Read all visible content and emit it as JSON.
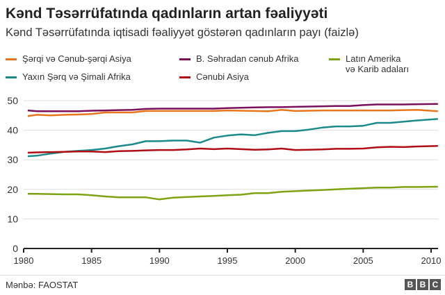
{
  "title": "Kənd Təsərrüfatında qadınların artan fəaliyyəti",
  "subtitle": "Kənd Təsərrüfatında iqtisadi fəaliyyət göstərən qadınların payı (faizlə)",
  "source": "Mənbə: FAOSTAT",
  "logo": [
    "B",
    "B",
    "C"
  ],
  "chart_data": {
    "type": "line",
    "title": "Kənd Təsərrüfatında qadınların artan fəaliyyəti",
    "xlabel": "",
    "ylabel": "",
    "xlim": [
      1980,
      2010.5
    ],
    "ylim": [
      0,
      50
    ],
    "x_ticks": [
      "1980",
      "1985",
      "1990",
      "1995",
      "2000",
      "2005",
      "2010"
    ],
    "y_ticks": [
      "0",
      "10",
      "20",
      "30",
      "40",
      "50"
    ],
    "grid": true,
    "x": [
      1980.3,
      1981,
      1982,
      1983,
      1984,
      1985,
      1986,
      1987,
      1988,
      1989,
      1990,
      1991,
      1992,
      1993,
      1994,
      1995,
      1996,
      1997,
      1998,
      1999,
      2000,
      2001,
      2002,
      2003,
      2004,
      2005,
      2006,
      2007,
      2008,
      2009,
      2010.5
    ],
    "series": [
      {
        "name": "Şərqi və Cənub-şərqi Asiya",
        "color": "#e8761c",
        "values": [
          44.8,
          45.2,
          45,
          45.2,
          45.3,
          45.5,
          46,
          46,
          46,
          46.5,
          46.5,
          46.5,
          46.5,
          46.5,
          46.5,
          46.7,
          46.6,
          46.5,
          46.4,
          46.9,
          46.5,
          46.6,
          46.7,
          46.7,
          46.7,
          46.7,
          46.7,
          46.7,
          46.8,
          46.9,
          46.4
        ]
      },
      {
        "name": "B. Səhradan cənub Afrika",
        "color": "#7a0f5c",
        "values": [
          46.7,
          46.4,
          46.4,
          46.4,
          46.4,
          46.6,
          46.7,
          46.8,
          46.9,
          47.2,
          47.3,
          47.3,
          47.3,
          47.3,
          47.3,
          47.5,
          47.6,
          47.7,
          47.8,
          47.8,
          47.9,
          48,
          48.1,
          48.2,
          48.2,
          48.5,
          48.7,
          48.7,
          48.7,
          48.8,
          48.9
        ]
      },
      {
        "name": "Latın Amerika və Karib adaları",
        "color": "#7ea312",
        "values": [
          18.5,
          18.5,
          18.4,
          18.3,
          18.3,
          18.0,
          17.6,
          17.3,
          17.3,
          17.3,
          16.6,
          17.2,
          17.4,
          17.6,
          17.8,
          18.0,
          18.2,
          18.7,
          18.7,
          19.2,
          19.4,
          19.6,
          19.8,
          20.0,
          20.2,
          20.4,
          20.6,
          20.6,
          20.8,
          20.8,
          20.9
        ]
      },
      {
        "name": "Yaxın Şərq və Şimali Afrika",
        "color": "#1b8a8a",
        "values": [
          31.2,
          31.4,
          32.1,
          32.7,
          33.0,
          33.3,
          33.8,
          34.6,
          35.2,
          36.3,
          36.3,
          36.5,
          36.5,
          35.8,
          37.5,
          38.2,
          38.6,
          38.3,
          39.1,
          39.7,
          39.7,
          40.2,
          40.9,
          41.3,
          41.3,
          41.5,
          42.5,
          42.5,
          42.9,
          43.3,
          43.8
        ]
      },
      {
        "name": "Cənubi Asiya",
        "color": "#b00d14",
        "values": [
          32.4,
          32.5,
          32.6,
          32.7,
          32.8,
          32.8,
          32.6,
          32.9,
          33,
          33.2,
          33.3,
          33.3,
          33.5,
          33.8,
          33.6,
          33.8,
          33.6,
          33.4,
          33.5,
          33.8,
          33.3,
          33.4,
          33.5,
          33.7,
          33.7,
          33.8,
          34.2,
          34.4,
          34.3,
          34.5,
          34.7
        ]
      }
    ],
    "legend": {
      "placement": "top",
      "items": [
        "Şərqi və Cənub-şərqi Asiya",
        "B. Səhradan cənub Afrika",
        "Latın Amerika",
        "və Karib adaları",
        "Yaxın Şərq və Şimali Afrika",
        "Cənubi Asiya"
      ]
    }
  }
}
